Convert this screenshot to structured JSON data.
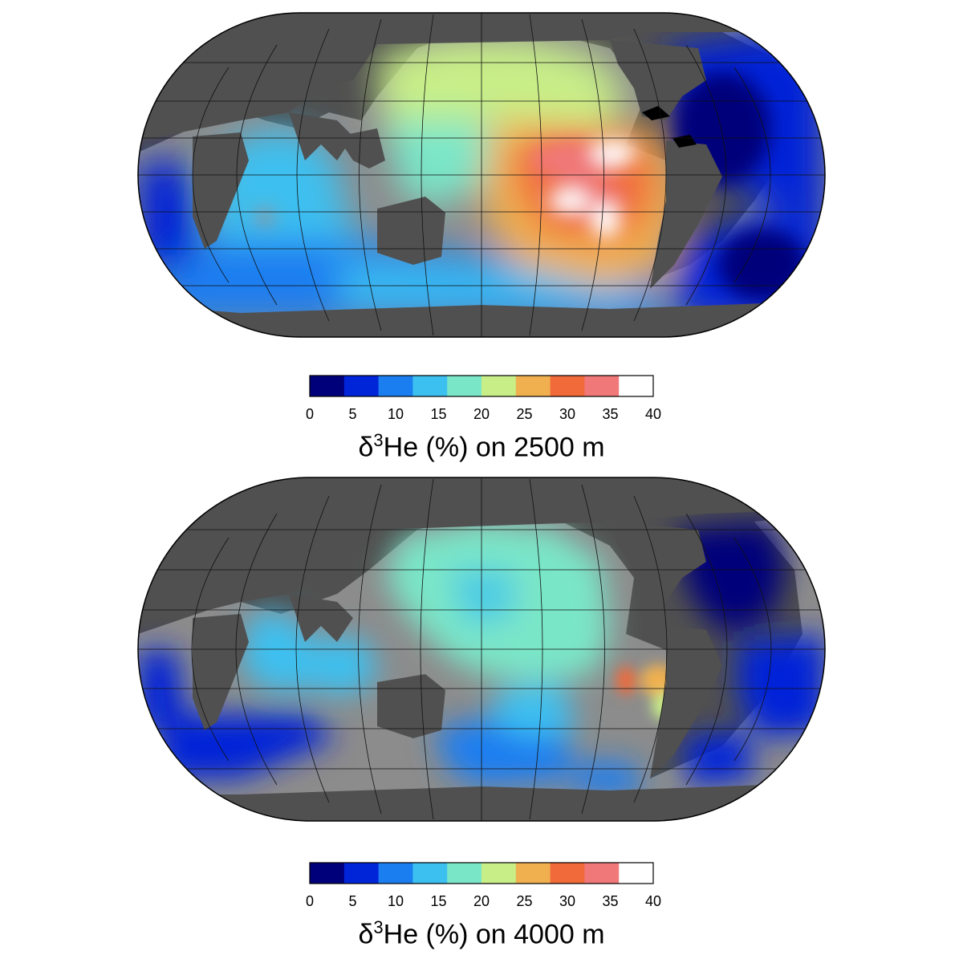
{
  "maps": [
    {
      "id": "top",
      "colorbar": {
        "ticks": [
          "0",
          "5",
          "10",
          "15",
          "20",
          "25",
          "30",
          "35",
          "40"
        ],
        "title": {
          "symbol": "δ",
          "superscript": "3",
          "text": "He (%) on 2500 m"
        }
      }
    },
    {
      "id": "bottom",
      "colorbar": {
        "ticks": [
          "0",
          "5",
          "10",
          "15",
          "20",
          "25",
          "30",
          "35",
          "40"
        ],
        "title": {
          "symbol": "δ",
          "superscript": "3",
          "text": "He (%) on 4000 m"
        }
      }
    }
  ],
  "colorbar_colors": [
    "#00007a",
    "#0024d8",
    "#1a7ef0",
    "#3cc0f0",
    "#7ae6c8",
    "#c8ee88",
    "#f0b050",
    "#f06a3a",
    "#f07878",
    "#ffffff"
  ],
  "map_colors": {
    "land": "#505050",
    "shallow": "#8c8c8c",
    "outline": "#000000",
    "graticule": "#111111"
  }
}
